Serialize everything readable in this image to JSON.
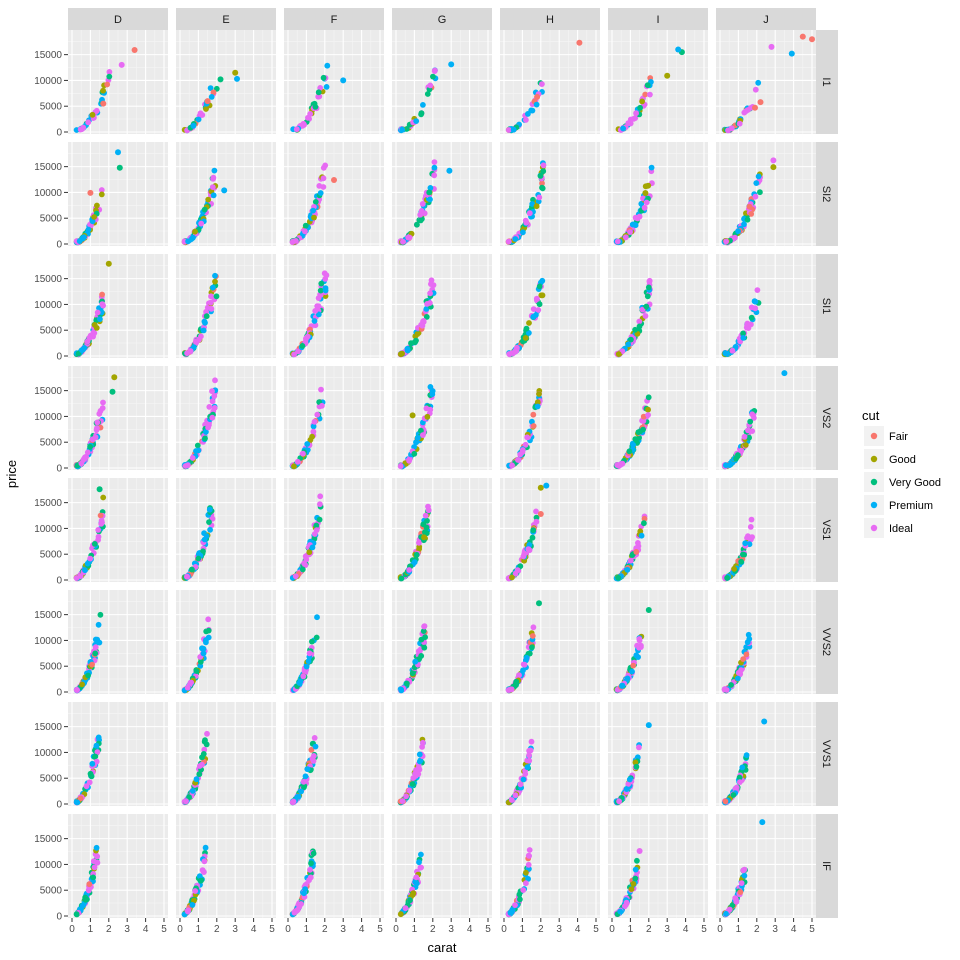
{
  "chart_data": {
    "type": "scatter",
    "xlabel": "carat",
    "ylabel": "price",
    "xlim": [
      0,
      5
    ],
    "ylim": [
      0,
      19000
    ],
    "x_ticks": [
      0,
      1,
      2,
      3,
      4,
      5
    ],
    "y_ticks": [
      0,
      5000,
      10000,
      15000
    ],
    "y_tick_labels": [
      "0",
      "5000",
      "10000",
      "15000"
    ],
    "grid": true,
    "facet_cols": [
      "D",
      "E",
      "F",
      "G",
      "H",
      "I",
      "J"
    ],
    "facet_rows": [
      "I1",
      "SI2",
      "SI1",
      "VS2",
      "VS1",
      "VVS2",
      "VVS1",
      "IF"
    ],
    "legend": {
      "title": "cut",
      "position": "right",
      "entries": [
        {
          "name": "Fair",
          "color": "#F8766D"
        },
        {
          "name": "Good",
          "color": "#A3A500"
        },
        {
          "name": "Very Good",
          "color": "#00BF7D"
        },
        {
          "name": "Premium",
          "color": "#00B0F6"
        },
        {
          "name": "Ideal",
          "color": "#E76BF3"
        }
      ]
    },
    "facet_params": {
      "col_slope": [
        1.0,
        0.98,
        0.95,
        0.9,
        0.83,
        0.78,
        0.72
      ],
      "row_slope": [
        0.7,
        0.95,
        1.0,
        1.12,
        1.25,
        1.42,
        1.58,
        1.8
      ],
      "col_max_carat": [
        1.7,
        2.0,
        2.1,
        2.1,
        2.3,
        2.4,
        2.5
      ],
      "row_max_carat": [
        1.8,
        2.2,
        2.1,
        2.0,
        1.8,
        1.6,
        1.5,
        1.4
      ]
    },
    "series": [
      {
        "name": "Fair",
        "color": "#F8766D",
        "points": [
          {
            "row": "I1",
            "col": "D",
            "x": 3.4,
            "y": 15900
          },
          {
            "row": "I1",
            "col": "D",
            "x": 1.7,
            "y": 5500
          },
          {
            "row": "I1",
            "col": "E",
            "x": 1.5,
            "y": 6000
          },
          {
            "row": "I1",
            "col": "H",
            "x": 4.1,
            "y": 17300
          },
          {
            "row": "I1",
            "col": "H",
            "x": 1.8,
            "y": 6800
          },
          {
            "row": "I1",
            "col": "J",
            "x": 4.5,
            "y": 18500
          },
          {
            "row": "I1",
            "col": "J",
            "x": 5.0,
            "y": 18000
          },
          {
            "row": "I1",
            "col": "J",
            "x": 2.2,
            "y": 5800
          },
          {
            "row": "I1",
            "col": "J",
            "x": 1.9,
            "y": 4700
          },
          {
            "row": "SI2",
            "col": "D",
            "x": 1.0,
            "y": 9900
          },
          {
            "row": "SI2",
            "col": "F",
            "x": 2.5,
            "y": 12400
          },
          {
            "row": "VS1",
            "col": "H",
            "x": 2.0,
            "y": 12800
          }
        ]
      },
      {
        "name": "Good",
        "color": "#A3A500",
        "points": [
          {
            "row": "I1",
            "col": "E",
            "x": 3.0,
            "y": 11500
          },
          {
            "row": "I1",
            "col": "I",
            "x": 3.0,
            "y": 10900
          },
          {
            "row": "SI1",
            "col": "D",
            "x": 2.0,
            "y": 17900
          },
          {
            "row": "VS2",
            "col": "D",
            "x": 2.3,
            "y": 17600
          },
          {
            "row": "VS2",
            "col": "G",
            "x": 0.9,
            "y": 10200
          },
          {
            "row": "SI2",
            "col": "J",
            "x": 2.9,
            "y": 14900
          },
          {
            "row": "VS1",
            "col": "H",
            "x": 2.0,
            "y": 17900
          }
        ]
      },
      {
        "name": "Very Good",
        "color": "#00BF7D",
        "points": [
          {
            "row": "I1",
            "col": "E",
            "x": 2.2,
            "y": 10200
          },
          {
            "row": "I1",
            "col": "I",
            "x": 3.8,
            "y": 15500
          },
          {
            "row": "SI2",
            "col": "D",
            "x": 2.6,
            "y": 14800
          },
          {
            "row": "VS2",
            "col": "D",
            "x": 2.2,
            "y": 14800
          },
          {
            "row": "VS1",
            "col": "D",
            "x": 1.5,
            "y": 17600
          },
          {
            "row": "VVS2",
            "col": "H",
            "x": 1.9,
            "y": 17200
          },
          {
            "row": "VVS2",
            "col": "I",
            "x": 2.0,
            "y": 15900
          }
        ]
      },
      {
        "name": "Premium",
        "color": "#00B0F6",
        "points": [
          {
            "row": "I1",
            "col": "E",
            "x": 3.1,
            "y": 10300
          },
          {
            "row": "I1",
            "col": "F",
            "x": 3.0,
            "y": 10000
          },
          {
            "row": "I1",
            "col": "G",
            "x": 3.0,
            "y": 13100
          },
          {
            "row": "I1",
            "col": "I",
            "x": 3.6,
            "y": 16000
          },
          {
            "row": "I1",
            "col": "J",
            "x": 3.9,
            "y": 15200
          },
          {
            "row": "SI2",
            "col": "D",
            "x": 2.5,
            "y": 17800
          },
          {
            "row": "SI2",
            "col": "E",
            "x": 2.4,
            "y": 10400
          },
          {
            "row": "SI2",
            "col": "G",
            "x": 2.9,
            "y": 14200
          },
          {
            "row": "VS2",
            "col": "J",
            "x": 3.5,
            "y": 18400
          },
          {
            "row": "VS1",
            "col": "H",
            "x": 2.3,
            "y": 18300
          },
          {
            "row": "VVS1",
            "col": "I",
            "x": 2.0,
            "y": 15300
          },
          {
            "row": "VVS1",
            "col": "J",
            "x": 2.4,
            "y": 16000
          },
          {
            "row": "IF",
            "col": "J",
            "x": 2.3,
            "y": 18200
          }
        ]
      },
      {
        "name": "Ideal",
        "color": "#E76BF3",
        "points": [
          {
            "row": "I1",
            "col": "D",
            "x": 2.7,
            "y": 13000
          },
          {
            "row": "I1",
            "col": "J",
            "x": 2.8,
            "y": 16500
          },
          {
            "row": "SI2",
            "col": "J",
            "x": 2.9,
            "y": 16200
          },
          {
            "row": "IF",
            "col": "I",
            "x": 1.5,
            "y": 12600
          }
        ]
      }
    ]
  }
}
